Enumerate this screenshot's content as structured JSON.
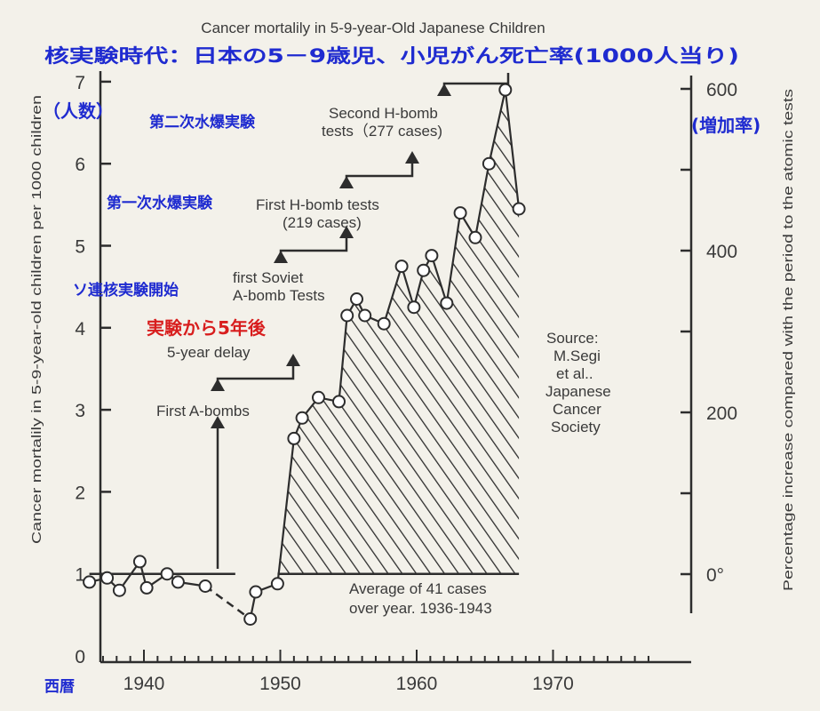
{
  "chart_data": {
    "type": "line",
    "title": "Cancer mortalily in 5-9-year-Old Japanese Children",
    "subtitle": "核実験時代：日本の5－9歳児、小児がん死亡率(1000人当り)",
    "xlabel": "西暦",
    "ylabel": "Cancer mortalily in 5-9-year-old children per 1000 children",
    "ylabel_jp": "（人数）",
    "y2label": "Percentage increase compared with the period to the atomic tests",
    "y2label_jp": "(増加率)",
    "xlim": [
      1936,
      1978
    ],
    "ylim": [
      0,
      7.3
    ],
    "x_ticks": [
      1940,
      1950,
      1960,
      1970
    ],
    "x_tick_labels": [
      "1940",
      "1950",
      "1960",
      "1970"
    ],
    "y_ticks": [
      0,
      1,
      2,
      3,
      4,
      5,
      6,
      7
    ],
    "y_tick_labels": [
      "0",
      "1",
      "2",
      "3",
      "4",
      "5",
      "6",
      "7"
    ],
    "y2_ticks": [
      0,
      200,
      400,
      600
    ],
    "y2_tick_labels": [
      "0°",
      "200",
      "400",
      "600"
    ],
    "y2_minor": [
      100,
      300,
      500
    ],
    "baseline": 1.0,
    "series": [
      {
        "x": [
          1936.0,
          1937.3,
          1938.2,
          1939.7,
          1940.2,
          1941.7,
          1942.5,
          1944.5,
          1947.8,
          1948.2,
          1949.8,
          1951.0,
          1951.6,
          1952.8,
          1954.3,
          1954.9,
          1955.6,
          1956.2,
          1957.6,
          1958.9,
          1959.8,
          1960.5,
          1961.1,
          1962.2,
          1963.2,
          1964.3,
          1965.3,
          1966.5,
          1967.5
        ],
        "values": [
          0.9,
          0.95,
          0.8,
          1.15,
          0.83,
          1.0,
          0.9,
          0.85,
          0.45,
          0.78,
          0.88,
          2.65,
          2.9,
          3.15,
          3.1,
          4.15,
          4.35,
          4.15,
          4.05,
          4.75,
          4.25,
          4.7,
          4.88,
          4.3,
          5.4,
          5.1,
          6.0,
          6.9,
          5.45
        ]
      }
    ],
    "annotations": {
      "baseline_note": "Average of 41 cases over year. 1936-1943",
      "source": "Source: M.Segi et al.. Japanese Cancer Society",
      "events": [
        {
          "en": "First A-bombs",
          "jp": "",
          "x": 1946
        },
        {
          "en": "5-year delay",
          "jp": "実験から5年後",
          "x": 1951
        },
        {
          "en": "first Soviet A-bomb Tests",
          "jp": "ソ連核実験開始",
          "x": 1950
        },
        {
          "en": "First H-bomb tests (219 cases)",
          "jp": "第一次水爆実験",
          "x": 1955
        },
        {
          "en": "Second H-bomb tests (277 cases)",
          "jp": "第二次水爆実験",
          "x": 1962
        }
      ]
    },
    "grid": false,
    "legend": "none"
  },
  "colors": {
    "background": "#f3f1ea",
    "ink": "#2d2d2d",
    "jp_label": "#1f2bd0",
    "jp_highlight": "#d81e1e"
  }
}
